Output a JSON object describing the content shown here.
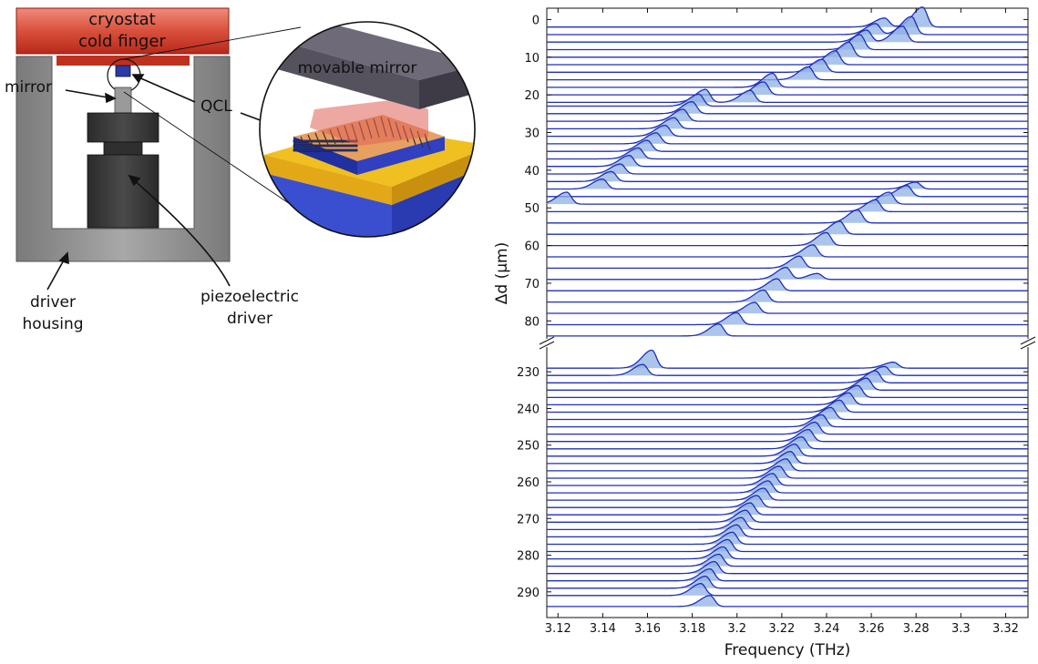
{
  "diagram": {
    "labels": {
      "cryostat": [
        "cryostat",
        "cold finger"
      ],
      "mirror": "mirror",
      "qcl": "QCL",
      "movable_mirror": "movable mirror",
      "driver_housing": [
        "driver",
        "housing"
      ],
      "piezo": [
        "piezoelectric",
        "driver"
      ]
    },
    "colors": {
      "cryostat": "#c0392b",
      "housing": "#8c8c8c",
      "driver": "#3a3a3a",
      "qcl": "#2a3aa8",
      "substrate_gold": "#e8b81a",
      "substrate_blue": "#3a4fd0",
      "mirror_block": "#6e6a78"
    }
  },
  "chart_data": {
    "type": "waterfall",
    "xlabel": "Frequency (THz)",
    "ylabel": "Δd (μm)",
    "xlim": [
      3.115,
      3.33
    ],
    "x_ticks": [
      "3.12",
      "3.14",
      "3.16",
      "3.18",
      "3.2",
      "3.22",
      "3.24",
      "3.26",
      "3.28",
      "3.3",
      "3.32"
    ],
    "x_tick_values": [
      3.12,
      3.14,
      3.16,
      3.18,
      3.2,
      3.22,
      3.24,
      3.26,
      3.28,
      3.3,
      3.32
    ],
    "y_broken_axis": true,
    "top_panel": {
      "ylim": [
        -3,
        85
      ],
      "y_ticks": [
        "0",
        "10",
        "20",
        "30",
        "40",
        "50",
        "60",
        "70",
        "80"
      ],
      "y_tick_values": [
        0,
        10,
        20,
        30,
        40,
        50,
        60,
        70,
        80
      ],
      "traces": [
        {
          "d": 2,
          "peaks": [
            [
              3.283,
              1.0
            ],
            [
              3.266,
              0.45
            ]
          ]
        },
        {
          "d": 4,
          "peaks": [
            [
              3.278,
              0.9
            ],
            [
              3.262,
              0.55
            ]
          ]
        },
        {
          "d": 6,
          "peaks": [
            [
              3.274,
              0.8
            ],
            [
              3.258,
              0.6
            ]
          ]
        },
        {
          "d": 8,
          "peaks": [
            [
              3.255,
              0.75
            ]
          ]
        },
        {
          "d": 10,
          "peaks": [
            [
              3.25,
              0.75
            ]
          ]
        },
        {
          "d": 12,
          "peaks": [
            [
              3.244,
              0.7
            ]
          ]
        },
        {
          "d": 14,
          "peaks": [
            [
              3.238,
              0.65
            ]
          ]
        },
        {
          "d": 16,
          "peaks": [
            [
              3.232,
              0.65
            ]
          ]
        },
        {
          "d": 18,
          "peaks": [
            [
              3.216,
              0.7
            ]
          ]
        },
        {
          "d": 20,
          "peaks": [
            [
              3.212,
              0.65
            ]
          ]
        },
        {
          "d": 22,
          "peaks": [
            [
              3.206,
              0.6
            ],
            [
              3.186,
              0.65
            ]
          ]
        },
        {
          "d": 23,
          "peaks": [
            [
              3.183,
              0.6
            ]
          ]
        },
        {
          "d": 25,
          "peaks": [
            [
              3.18,
              0.6
            ]
          ]
        },
        {
          "d": 27,
          "peaks": [
            [
              3.176,
              0.6
            ]
          ]
        },
        {
          "d": 29,
          "peaks": [
            [
              3.172,
              0.55
            ]
          ]
        },
        {
          "d": 31,
          "peaks": [
            [
              3.168,
              0.55
            ]
          ]
        },
        {
          "d": 33,
          "peaks": [
            [
              3.164,
              0.55
            ]
          ]
        },
        {
          "d": 35,
          "peaks": [
            [
              3.16,
              0.55
            ]
          ]
        },
        {
          "d": 37,
          "peaks": [
            [
              3.156,
              0.55
            ]
          ]
        },
        {
          "d": 39,
          "peaks": [
            [
              3.152,
              0.55
            ]
          ]
        },
        {
          "d": 41,
          "peaks": [
            [
              3.148,
              0.5
            ]
          ]
        },
        {
          "d": 43,
          "peaks": [
            [
              3.144,
              0.5
            ]
          ]
        },
        {
          "d": 45,
          "peaks": [
            [
              3.14,
              0.5
            ],
            [
              3.28,
              0.35
            ]
          ]
        },
        {
          "d": 47,
          "peaks": [
            [
              3.276,
              0.55
            ]
          ]
        },
        {
          "d": 49,
          "peaks": [
            [
              3.124,
              0.6
            ],
            [
              3.268,
              0.6
            ]
          ]
        },
        {
          "d": 51,
          "peaks": [
            [
              3.262,
              0.6
            ]
          ]
        },
        {
          "d": 54,
          "peaks": [
            [
              3.254,
              0.65
            ]
          ]
        },
        {
          "d": 57,
          "peaks": [
            [
              3.246,
              0.65
            ]
          ]
        },
        {
          "d": 60,
          "peaks": [
            [
              3.24,
              0.65
            ]
          ]
        },
        {
          "d": 63,
          "peaks": [
            [
              3.234,
              0.6
            ]
          ]
        },
        {
          "d": 66,
          "peaks": [
            [
              3.228,
              0.6
            ]
          ]
        },
        {
          "d": 69,
          "peaks": [
            [
              3.222,
              0.6
            ],
            [
              3.236,
              0.3
            ]
          ]
        },
        {
          "d": 72,
          "peaks": [
            [
              3.218,
              0.6
            ]
          ]
        },
        {
          "d": 75,
          "peaks": [
            [
              3.212,
              0.6
            ]
          ]
        },
        {
          "d": 78,
          "peaks": [
            [
              3.208,
              0.55
            ]
          ]
        },
        {
          "d": 81,
          "peaks": [
            [
              3.2,
              0.6
            ]
          ]
        },
        {
          "d": 84,
          "peaks": [
            [
              3.192,
              0.6
            ]
          ]
        }
      ]
    },
    "bottom_panel": {
      "ylim": [
        223,
        297
      ],
      "y_ticks": [
        "230",
        "240",
        "250",
        "260",
        "270",
        "280",
        "290"
      ],
      "y_tick_values": [
        230,
        240,
        250,
        260,
        270,
        280,
        290
      ],
      "traces": [
        {
          "d": 229,
          "peaks": [
            [
              3.162,
              0.9
            ],
            [
              3.27,
              0.3
            ]
          ]
        },
        {
          "d": 231,
          "peaks": [
            [
              3.158,
              0.55
            ],
            [
              3.266,
              0.45
            ]
          ]
        },
        {
          "d": 233,
          "peaks": [
            [
              3.262,
              0.6
            ]
          ]
        },
        {
          "d": 235,
          "peaks": [
            [
              3.258,
              0.6
            ]
          ]
        },
        {
          "d": 237,
          "peaks": [
            [
              3.254,
              0.6
            ]
          ]
        },
        {
          "d": 239,
          "peaks": [
            [
              3.25,
              0.6
            ]
          ]
        },
        {
          "d": 241,
          "peaks": [
            [
              3.246,
              0.6
            ]
          ]
        },
        {
          "d": 243,
          "peaks": [
            [
              3.242,
              0.6
            ]
          ]
        },
        {
          "d": 245,
          "peaks": [
            [
              3.238,
              0.6
            ]
          ]
        },
        {
          "d": 247,
          "peaks": [
            [
              3.235,
              0.6
            ]
          ]
        },
        {
          "d": 249,
          "peaks": [
            [
              3.232,
              0.6
            ]
          ]
        },
        {
          "d": 251,
          "peaks": [
            [
              3.229,
              0.6
            ]
          ]
        },
        {
          "d": 253,
          "peaks": [
            [
              3.226,
              0.6
            ]
          ]
        },
        {
          "d": 255,
          "peaks": [
            [
              3.224,
              0.6
            ]
          ]
        },
        {
          "d": 257,
          "peaks": [
            [
              3.222,
              0.6
            ]
          ]
        },
        {
          "d": 259,
          "peaks": [
            [
              3.219,
              0.6
            ]
          ]
        },
        {
          "d": 261,
          "peaks": [
            [
              3.216,
              0.6
            ]
          ]
        },
        {
          "d": 263,
          "peaks": [
            [
              3.214,
              0.6
            ]
          ]
        },
        {
          "d": 265,
          "peaks": [
            [
              3.212,
              0.6
            ]
          ]
        },
        {
          "d": 267,
          "peaks": [
            [
              3.209,
              0.6
            ]
          ]
        },
        {
          "d": 269,
          "peaks": [
            [
              3.206,
              0.6
            ]
          ]
        },
        {
          "d": 271,
          "peaks": [
            [
              3.204,
              0.6
            ]
          ]
        },
        {
          "d": 273,
          "peaks": [
            [
              3.202,
              0.6
            ]
          ]
        },
        {
          "d": 275,
          "peaks": [
            [
              3.2,
              0.6
            ]
          ]
        },
        {
          "d": 277,
          "peaks": [
            [
              3.198,
              0.6
            ]
          ]
        },
        {
          "d": 279,
          "peaks": [
            [
              3.196,
              0.6
            ]
          ]
        },
        {
          "d": 281,
          "peaks": [
            [
              3.194,
              0.6
            ]
          ]
        },
        {
          "d": 283,
          "peaks": [
            [
              3.192,
              0.6
            ]
          ]
        },
        {
          "d": 285,
          "peaks": [
            [
              3.19,
              0.6
            ]
          ]
        },
        {
          "d": 287,
          "peaks": [
            [
              3.188,
              0.6
            ]
          ]
        },
        {
          "d": 289,
          "peaks": [
            [
              3.186,
              0.6
            ]
          ]
        },
        {
          "d": 291,
          "peaks": [
            [
              3.184,
              0.6
            ]
          ]
        },
        {
          "d": 294,
          "peaks": [
            [
              3.188,
              0.55
            ]
          ]
        }
      ]
    }
  }
}
